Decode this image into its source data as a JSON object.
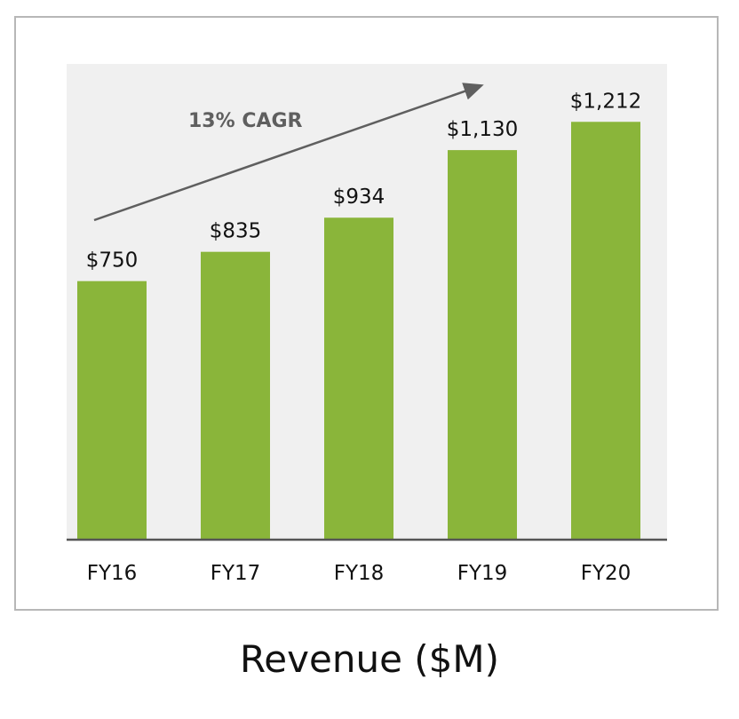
{
  "caption": "Revenue ($M)",
  "colors": {
    "bar": "#8ab53a",
    "plot_bg": "#f0f0f0",
    "axis": "#555555",
    "annotation": "#5f5f5f",
    "text": "#111111",
    "frame": "#b7b7b7"
  },
  "chart_data": {
    "type": "bar",
    "title": "",
    "xlabel": "",
    "ylabel": "",
    "categories": [
      "FY16",
      "FY17",
      "FY18",
      "FY19",
      "FY20"
    ],
    "values": [
      750,
      835,
      934,
      1130,
      1212
    ],
    "data_labels": [
      "$750",
      "$835",
      "$934",
      "$1,130",
      "$1,212"
    ],
    "ylim": [
      0,
      1380
    ],
    "grid": false,
    "legend": "none",
    "annotation": {
      "text": "13% CAGR",
      "arrow": "upward trend from FY16 to FY20"
    }
  }
}
